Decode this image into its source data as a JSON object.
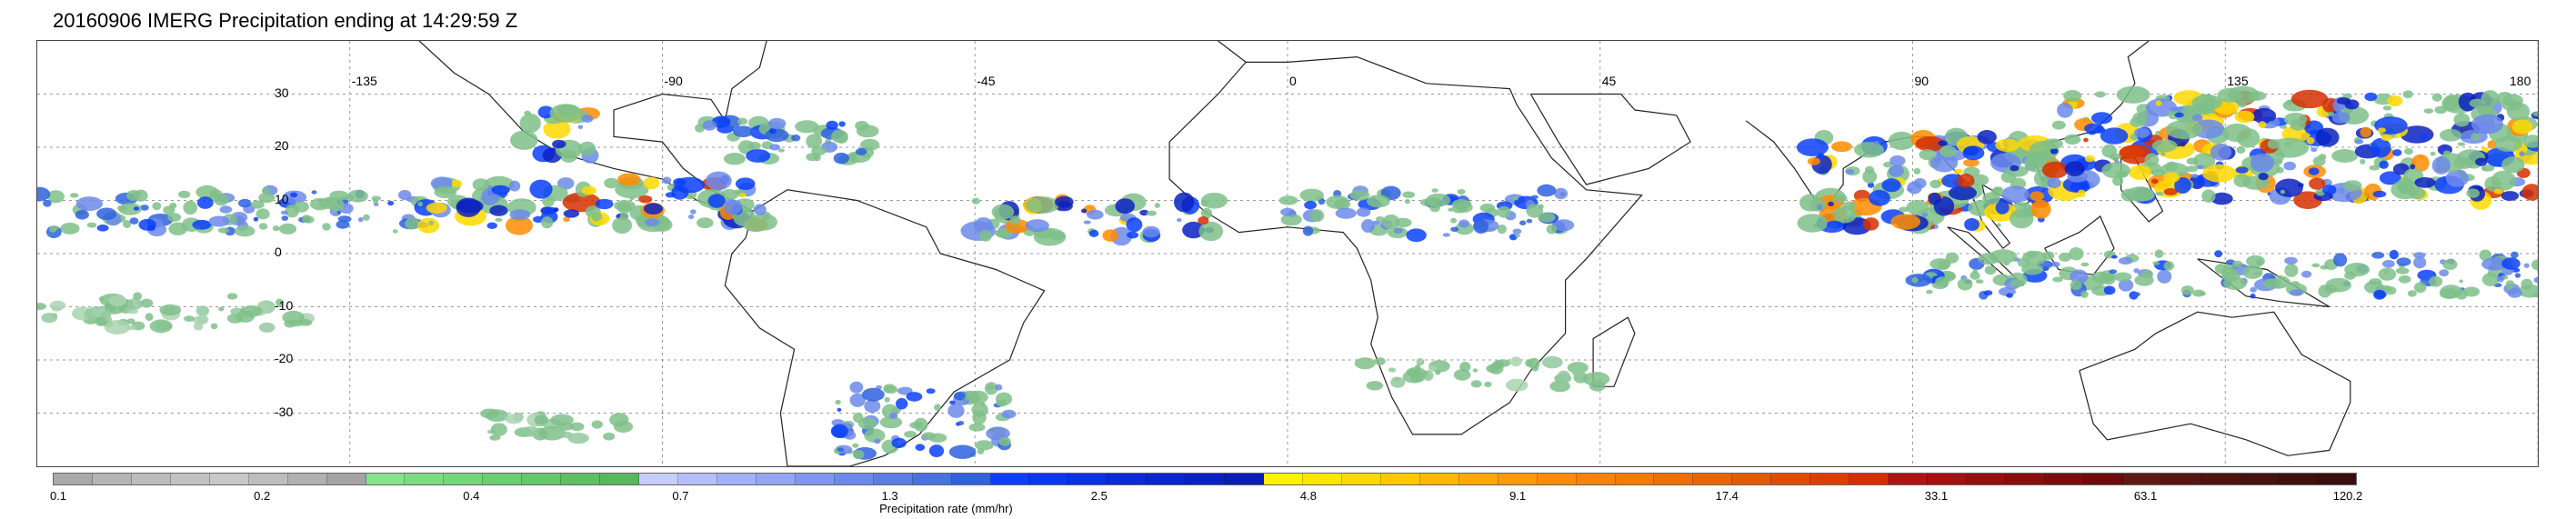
{
  "title": "20160906 IMERG Precipitation ending at 14:29:59 Z",
  "map": {
    "lon_range": [
      -180,
      180
    ],
    "lat_range": [
      -40,
      40
    ],
    "lat_labels": [
      {
        "value": 30,
        "text": "30"
      },
      {
        "value": 20,
        "text": "20"
      },
      {
        "value": 10,
        "text": "10"
      },
      {
        "value": 0,
        "text": "0"
      },
      {
        "value": -10,
        "text": "-10"
      },
      {
        "value": -20,
        "text": "-20"
      },
      {
        "value": -30,
        "text": "-30"
      }
    ],
    "lon_labels": [
      {
        "value": -135,
        "text": "-135"
      },
      {
        "value": -90,
        "text": "-90"
      },
      {
        "value": -45,
        "text": "-45"
      },
      {
        "value": 0,
        "text": "0"
      },
      {
        "value": 45,
        "text": "45"
      },
      {
        "value": 90,
        "text": "90"
      },
      {
        "value": 135,
        "text": "135"
      },
      {
        "value": 180,
        "text": "180"
      }
    ],
    "gridlines": true,
    "precip_bands": [
      {
        "lon": [
          -180,
          -125
        ],
        "lat": [
          4,
          12
        ],
        "level": "moderate"
      },
      {
        "lon": [
          -125,
          -75
        ],
        "lat": [
          5,
          14
        ],
        "level": "heavy"
      },
      {
        "lon": [
          -110,
          -100
        ],
        "lat": [
          18,
          27
        ],
        "level": "heavy"
      },
      {
        "lon": [
          -85,
          -60
        ],
        "lat": [
          17,
          25
        ],
        "level": "moderate"
      },
      {
        "lon": [
          -45,
          -10
        ],
        "lat": [
          3,
          10
        ],
        "level": "heavy"
      },
      {
        "lon": [
          0,
          40
        ],
        "lat": [
          3,
          12
        ],
        "level": "moderate"
      },
      {
        "lon": [
          75,
          110
        ],
        "lat": [
          5,
          22
        ],
        "level": "heavy"
      },
      {
        "lon": [
          110,
          180
        ],
        "lat": [
          10,
          30
        ],
        "level": "heavy"
      },
      {
        "lon": [
          90,
          180
        ],
        "lat": [
          -8,
          0
        ],
        "level": "moderate"
      },
      {
        "lon": [
          -180,
          -140
        ],
        "lat": [
          -14,
          -8
        ],
        "level": "light"
      },
      {
        "lon": [
          -65,
          -40
        ],
        "lat": [
          -38,
          -25
        ],
        "level": "moderate"
      },
      {
        "lon": [
          -115,
          -95
        ],
        "lat": [
          -35,
          -30
        ],
        "level": "light"
      },
      {
        "lon": [
          10,
          45
        ],
        "lat": [
          -25,
          -20
        ],
        "level": "light"
      }
    ]
  },
  "colorbar": {
    "colors": [
      "#a9a9a9",
      "#b4b4b4",
      "#bcbcbc",
      "#c2c2c2",
      "#c8c8c8",
      "#bdbdbd",
      "#b0b0b0",
      "#a4a4a4",
      "#86e38a",
      "#7cdd80",
      "#73d677",
      "#6bcf6f",
      "#64c868",
      "#5cc061",
      "#57b85b",
      "#c6cdfd",
      "#b4befb",
      "#a3b1f6",
      "#92a6f2",
      "#7f98ee",
      "#6c8aea",
      "#5a7ee6",
      "#4672e2",
      "#2e62df",
      "#0b3ffb",
      "#0a37ef",
      "#0a31e4",
      "#0a2bd8",
      "#0a26cd",
      "#0a21c1",
      "#0a1db6",
      "#fff200",
      "#ffe600",
      "#ffd800",
      "#ffc800",
      "#ffb800",
      "#ffa800",
      "#ff9a00",
      "#ff8c00",
      "#f98200",
      "#f47a00",
      "#ef7000",
      "#ea6600",
      "#e55a00",
      "#e04d00",
      "#db3e00",
      "#d52f00",
      "#b21212",
      "#a51010",
      "#980f0f",
      "#8b0e0e",
      "#7d0c0c",
      "#700b0b",
      "#5e1a14",
      "#571612",
      "#4f1410",
      "#47120f",
      "#3f100d",
      "#380f0c"
    ],
    "tick_labels": [
      {
        "frac": 0.0,
        "text": "0.1"
      },
      {
        "frac": 0.0909,
        "text": "0.2"
      },
      {
        "frac": 0.1818,
        "text": "0.4"
      },
      {
        "frac": 0.2727,
        "text": "0.7"
      },
      {
        "frac": 0.3636,
        "text": "1.3"
      },
      {
        "frac": 0.4545,
        "text": "2.5"
      },
      {
        "frac": 0.5454,
        "text": "4.8"
      },
      {
        "frac": 0.6363,
        "text": "9.1"
      },
      {
        "frac": 0.7272,
        "text": "17.4"
      },
      {
        "frac": 0.8181,
        "text": "33.1"
      },
      {
        "frac": 0.909,
        "text": "63.1"
      },
      {
        "frac": 1.0,
        "text": "120.2"
      }
    ],
    "caption": "Precipitation rate (mm/hr)"
  }
}
